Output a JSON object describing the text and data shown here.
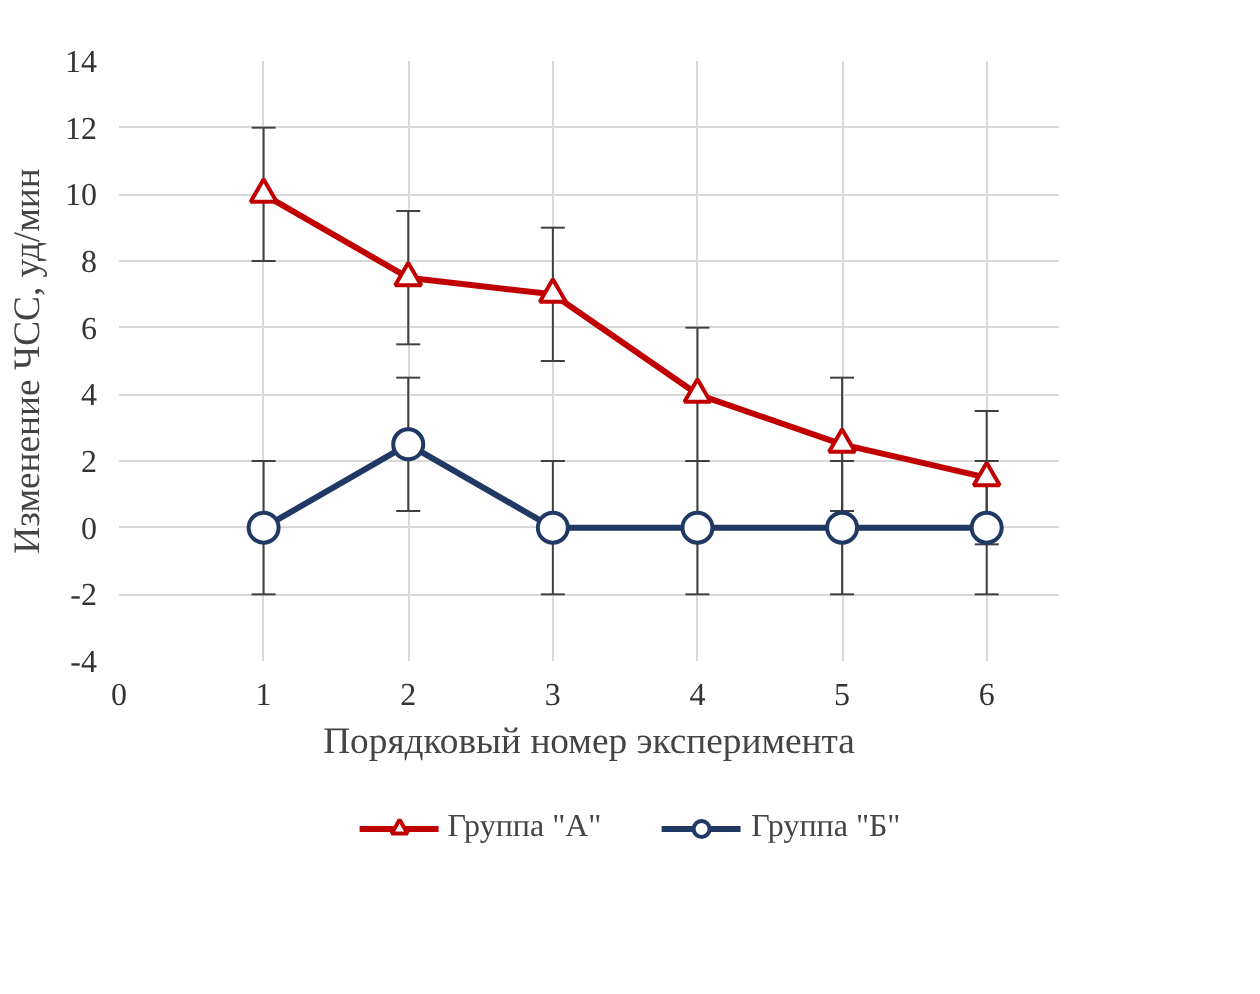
{
  "chart_data": {
    "type": "line",
    "xlabel": "Порядковый номер эксперимента",
    "ylabel": "Изменение ЧСС, уд/мин",
    "x": [
      1,
      2,
      3,
      4,
      5,
      6
    ],
    "series": [
      {
        "name": "Группа \"А\"",
        "color": "#c00000",
        "marker": "triangle",
        "values": [
          10,
          7.5,
          7,
          4,
          2.5,
          1.5
        ],
        "errors": [
          2,
          2,
          2,
          2,
          2,
          2
        ]
      },
      {
        "name": "Группа \"Б\"",
        "color": "#1f3864",
        "marker": "circle",
        "values": [
          0,
          2.5,
          0,
          0,
          0,
          0
        ],
        "errors": [
          2,
          2,
          2,
          2,
          2,
          2
        ]
      }
    ],
    "xlim": [
      0,
      6.5
    ],
    "xticks": [
      0,
      1,
      2,
      3,
      4,
      5,
      6
    ],
    "ylim": [
      -4,
      14
    ],
    "yticks": [
      -4,
      -2,
      0,
      2,
      4,
      6,
      8,
      10,
      12,
      14
    ],
    "grid": true,
    "legend": "bottom",
    "line_style": "solid"
  }
}
